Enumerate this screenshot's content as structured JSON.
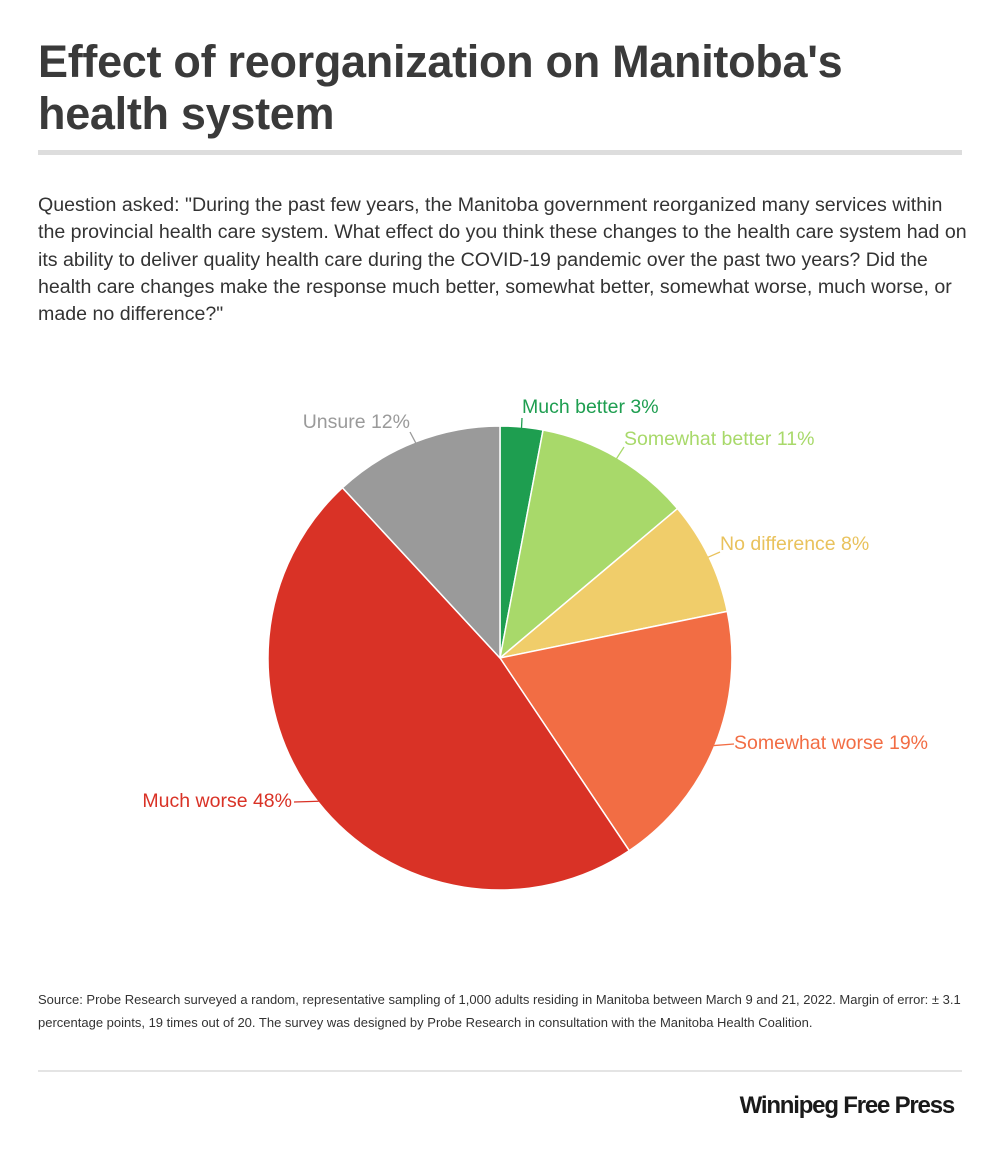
{
  "header": {
    "title": "Effect of reorganization on Manitoba's health system"
  },
  "question": "Question asked: \"During the past few years, the Manitoba government reorganized many services within the provincial health care system. What effect do you think these changes to the health care system had on its ability to deliver quality health care during the COVID-19 pandemic over the past two years? Did the health care changes make the response much better, somewhat better, somewhat worse, much worse, or made no difference?\"",
  "chart_data": {
    "type": "pie",
    "title": "",
    "unit": "%",
    "slices": [
      {
        "label": "Much better",
        "value": 3,
        "color": "#1e9e50",
        "label_color": "#1e9e50",
        "display": "Much better 3%"
      },
      {
        "label": "Somewhat better",
        "value": 11,
        "color": "#a8d96a",
        "label_color": "#a8d96a",
        "display": "Somewhat better 11%"
      },
      {
        "label": "No difference",
        "value": 8,
        "color": "#f0cd6a",
        "label_color": "#e9c25c",
        "display": "No difference 8%"
      },
      {
        "label": "Somewhat worse",
        "value": 19,
        "color": "#f26d44",
        "label_color": "#f26d44",
        "display": "Somewhat worse 19%"
      },
      {
        "label": "Much worse",
        "value": 48,
        "color": "#d93226",
        "label_color": "#d93226",
        "display": "Much worse 48%"
      },
      {
        "label": "Unsure",
        "value": 12,
        "color": "#9a9a9a",
        "label_color": "#9a9a9a",
        "display": "Unsure 12%"
      }
    ]
  },
  "footer": {
    "source": "Source: Probe Research surveyed a random, representative sampling of 1,000 adults residing in Manitoba between March 9 and 21, 2022. Margin of error: ± 3.1 percentage points, 19 times out of 20. The survey was designed by Probe Research in consultation with the Manitoba Health Coalition.",
    "brand": "Winnipeg Free Press"
  }
}
